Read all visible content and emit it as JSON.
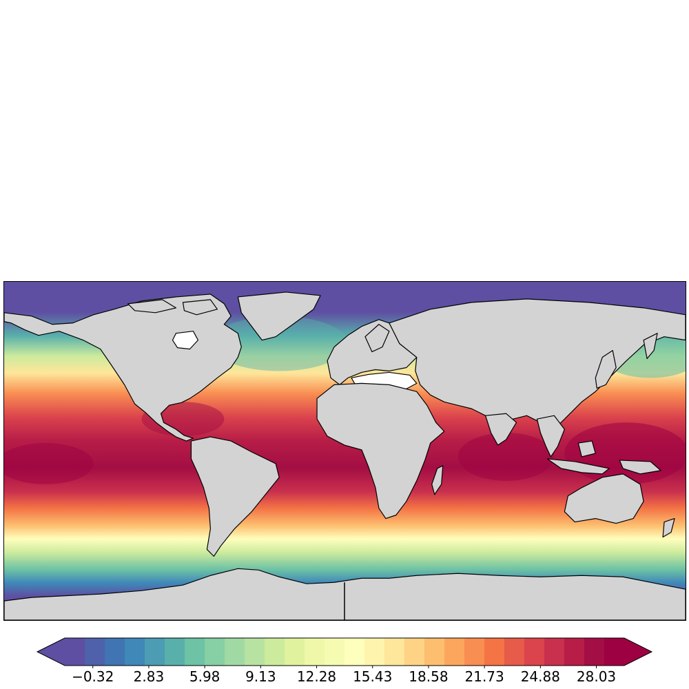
{
  "map": {
    "projection": "equirectangular (PlateCarree), global",
    "land_color": "#d3d3d3",
    "coastline_color": "#000000",
    "inland_water_color": "#ffffff",
    "field": "sea surface temperature (unlabeled), warm equatorial band, cold poles"
  },
  "colorbar": {
    "colormap": "Spectral_r",
    "extend": "both",
    "vmin": -1.9,
    "vmax": 29.6,
    "levels": 30,
    "colors": [
      "#5e4fa2",
      "#4f61aa",
      "#4174b3",
      "#3f88b8",
      "#4c9cb3",
      "#59b0ab",
      "#6ec2a5",
      "#87cfa4",
      "#a0d9a4",
      "#b8e2a1",
      "#cdeb9d",
      "#e0f29d",
      "#eef8a8",
      "#f6fbb2",
      "#fefebd",
      "#fff4ad",
      "#fee69a",
      "#fed385",
      "#fdbe6f",
      "#fca65d",
      "#f98e52",
      "#f47446",
      "#e75b4a",
      "#db434d",
      "#c9304d",
      "#b71d47",
      "#a30e44",
      "#9e0142"
    ],
    "ticks": [
      "−0.32",
      "2.83",
      "5.98",
      "9.13",
      "12.28",
      "15.43",
      "18.58",
      "21.73",
      "24.88",
      "28.03"
    ],
    "tick_values": [
      -0.32,
      2.83,
      5.98,
      9.13,
      12.28,
      15.43,
      18.58,
      21.73,
      24.88,
      28.03
    ]
  }
}
